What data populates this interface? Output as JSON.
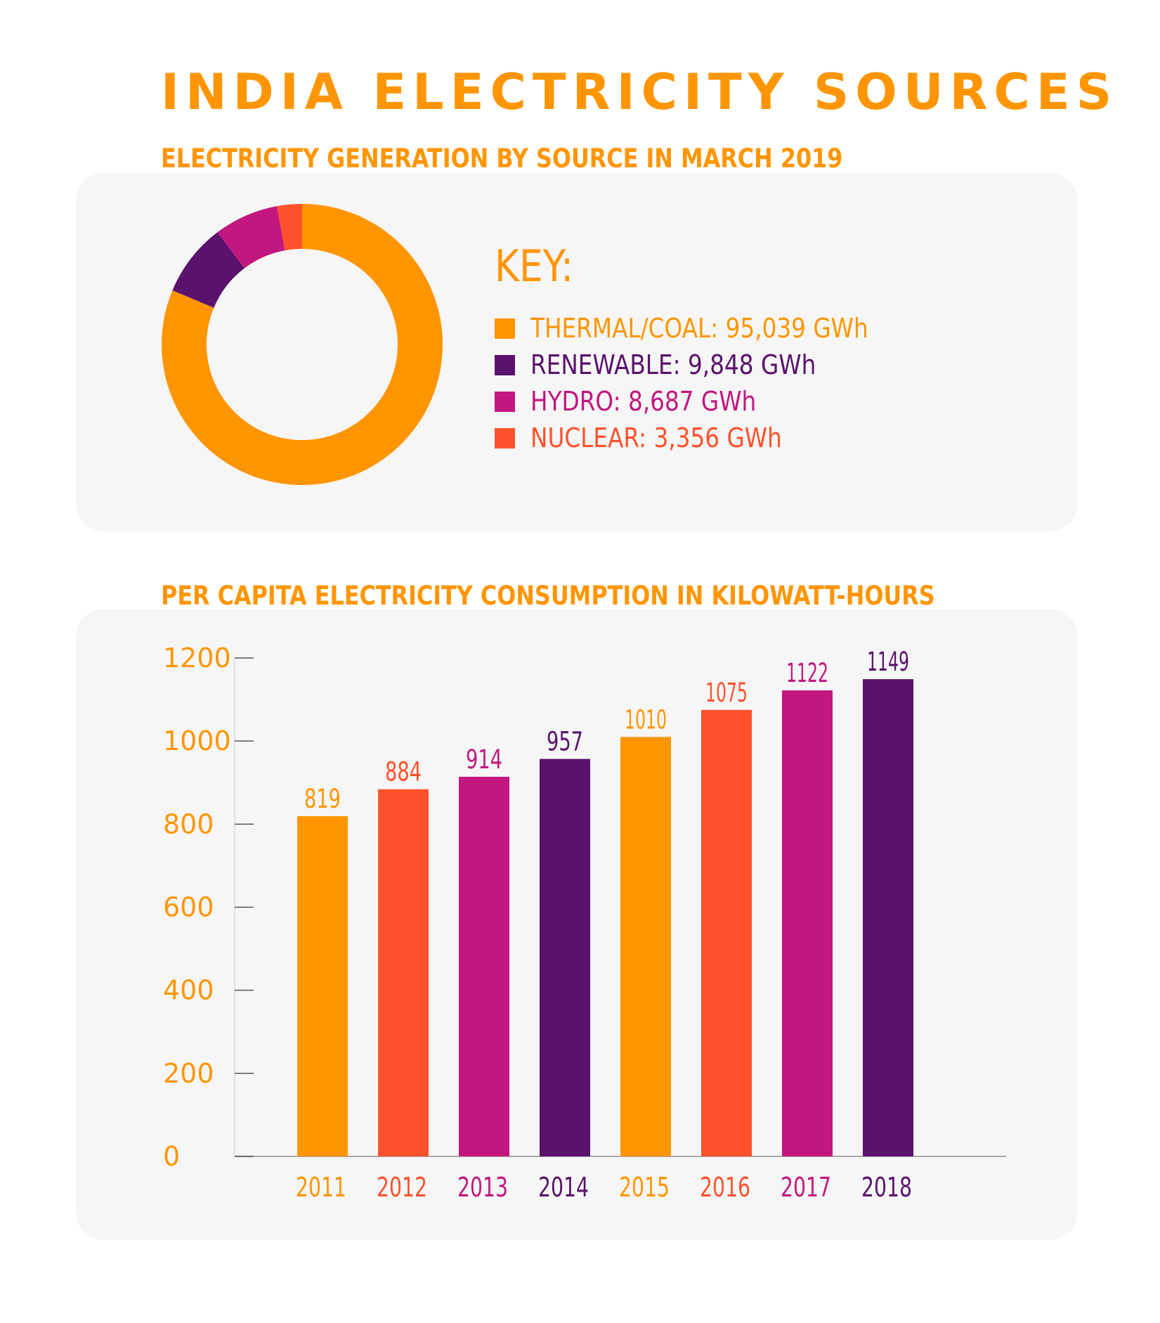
{
  "title": "INDIA ELECTRICITY SOURCES",
  "colors": {
    "orange": "#FF9500",
    "purple": "#5A126C",
    "magenta": "#C2177F",
    "red_orange": "#FF522C",
    "panel_bg": "#F6F6F6"
  },
  "chart_data": [
    {
      "type": "pie",
      "subtype": "donut",
      "title": "ELECTRICITY GENERATION BY SOURCE IN MARCH 2019",
      "legend_title": "KEY:",
      "legend_position": "right",
      "unit": "GWh",
      "slices": [
        {
          "label": "THERMAL/COAL",
          "value": 95039,
          "value_text": "95,039 GWh",
          "color": "#FF9500"
        },
        {
          "label": "RENEWABLE",
          "value": 9848,
          "value_text": "9,848 GWh",
          "color": "#5A126C"
        },
        {
          "label": "HYDRO",
          "value": 8687,
          "value_text": "8,687 GWh",
          "color": "#C2177F"
        },
        {
          "label": "NUCLEAR",
          "value": 3356,
          "value_text": "3,356 GWh",
          "color": "#FF522C"
        }
      ]
    },
    {
      "type": "bar",
      "title": "PER CAPITA ELECTRICITY CONSUMPTION IN KILOWATT-HOURS",
      "xlabel": "",
      "ylabel": "",
      "categories": [
        "2011",
        "2012",
        "2013",
        "2014",
        "2015",
        "2016",
        "2017",
        "2018"
      ],
      "values": [
        819,
        884,
        914,
        957,
        1010,
        1075,
        1122,
        1149
      ],
      "bar_colors": [
        "#FF9500",
        "#FF522C",
        "#C2177F",
        "#5A126C",
        "#FF9500",
        "#FF522C",
        "#C2177F",
        "#5A126C"
      ],
      "ylim": [
        0,
        1200
      ],
      "yticks": [
        0,
        200,
        400,
        600,
        800,
        1000,
        1200
      ],
      "grid": false
    }
  ]
}
